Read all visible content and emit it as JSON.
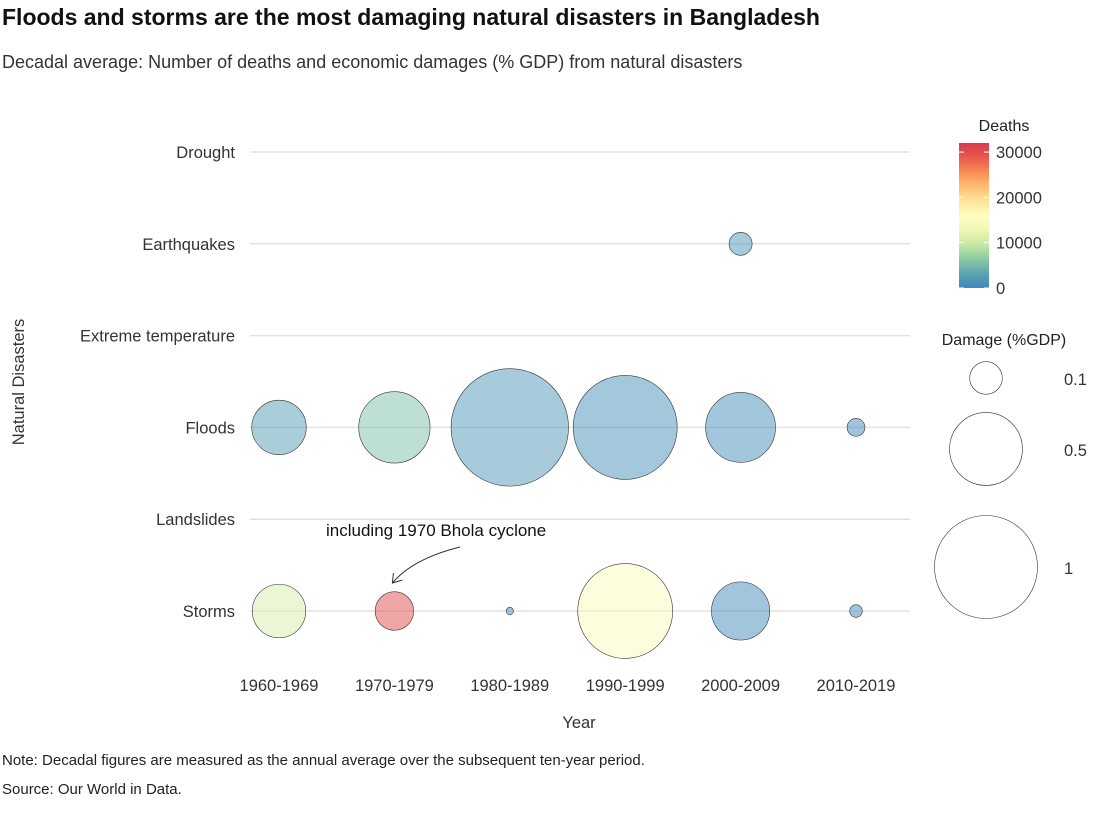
{
  "header": {
    "title": "Floods and storms are the most damaging natural disasters in Bangladesh",
    "subtitle": "Decadal average: Number of deaths and economic damages (% GDP) from natural disasters"
  },
  "footer": {
    "note": "Note: Decadal figures are measured as the annual average over the subsequent ten-year period.",
    "source": "Source: Our World in Data."
  },
  "chart_data": {
    "type": "scatter",
    "xlabel": "Year",
    "ylabel": "Natural Disasters",
    "x_categories": [
      "1960-1969",
      "1970-1979",
      "1980-1989",
      "1990-1999",
      "2000-2009",
      "2010-2019"
    ],
    "y_categories": [
      "Drought",
      "Earthquakes",
      "Extreme temperature",
      "Floods",
      "Landslides",
      "Storms"
    ],
    "grid": true,
    "points": [
      {
        "disaster": "Earthquakes",
        "decade": "2000-2009",
        "deaths": 1500,
        "damage_pct_gdp": 0.05
      },
      {
        "disaster": "Floods",
        "decade": "1960-1969",
        "deaths": 2500,
        "damage_pct_gdp": 0.28
      },
      {
        "disaster": "Floods",
        "decade": "1970-1979",
        "deaths": 5500,
        "damage_pct_gdp": 0.48
      },
      {
        "disaster": "Floods",
        "decade": "1980-1989",
        "deaths": 1800,
        "damage_pct_gdp": 1.3
      },
      {
        "disaster": "Floods",
        "decade": "1990-1999",
        "deaths": 1000,
        "damage_pct_gdp": 1.02
      },
      {
        "disaster": "Floods",
        "decade": "2000-2009",
        "deaths": 700,
        "damage_pct_gdp": 0.46
      },
      {
        "disaster": "Floods",
        "decade": "2010-2019",
        "deaths": 200,
        "damage_pct_gdp": 0.03
      },
      {
        "disaster": "Storms",
        "decade": "1960-1969",
        "deaths": 11000,
        "damage_pct_gdp": 0.27
      },
      {
        "disaster": "Storms",
        "decade": "1970-1979",
        "deaths": 30000,
        "damage_pct_gdp": 0.14
      },
      {
        "disaster": "Storms",
        "decade": "1980-1989",
        "deaths": 500,
        "damage_pct_gdp": 0.005
      },
      {
        "disaster": "Storms",
        "decade": "1990-1999",
        "deaths": 15000,
        "damage_pct_gdp": 0.85
      },
      {
        "disaster": "Storms",
        "decade": "2000-2009",
        "deaths": 500,
        "damage_pct_gdp": 0.32
      },
      {
        "disaster": "Storms",
        "decade": "2010-2019",
        "deaths": 200,
        "damage_pct_gdp": 0.015
      }
    ],
    "color_legend": {
      "title": "Deaths",
      "ticks": [
        "30000",
        "20000",
        "10000",
        "0"
      ],
      "tick_values": [
        30000,
        20000,
        10000,
        0
      ],
      "range": [
        0,
        32000
      ],
      "colors": [
        "#3f88bd",
        "#5ba4b0",
        "#8ccaa4",
        "#c7e8a3",
        "#eef7b4",
        "#fefec0",
        "#fee39a",
        "#fdbe74",
        "#f88b55",
        "#e9594d",
        "#d73c4b"
      ]
    },
    "size_legend": {
      "title": "Damage (%GDP)",
      "values": [
        0.1,
        0.5,
        1
      ],
      "labels": [
        "0.1",
        "0.5",
        "1"
      ]
    },
    "annotation": {
      "text": "including 1970 Bhola cyclone",
      "target_disaster": "Storms",
      "target_decade": "1970-1979"
    }
  }
}
